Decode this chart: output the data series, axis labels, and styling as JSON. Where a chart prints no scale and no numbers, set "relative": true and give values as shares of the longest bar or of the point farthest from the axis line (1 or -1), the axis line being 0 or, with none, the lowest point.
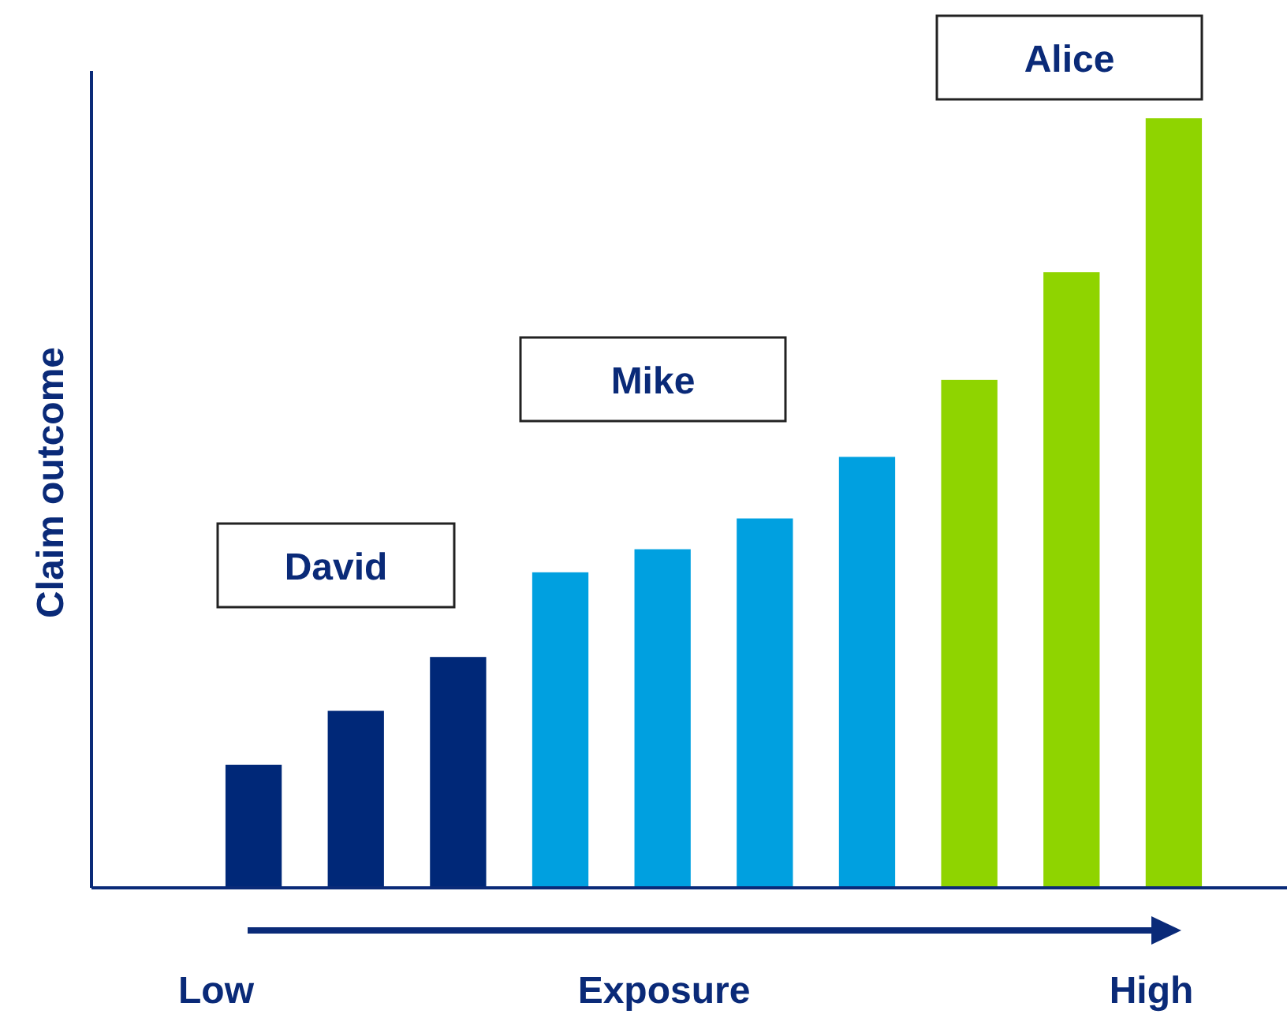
{
  "chart_data": {
    "type": "bar",
    "relative": true,
    "xlabel": "Exposure",
    "ylabel": "Claim outcome",
    "categories": [
      null,
      null,
      null,
      null,
      null,
      null,
      null,
      null,
      null,
      null
    ],
    "values": [
      0.16,
      0.23,
      0.3,
      0.41,
      0.44,
      0.48,
      0.56,
      0.66,
      0.8,
      1
    ],
    "colors": [
      "#002878",
      "#002878",
      "#002878",
      "#00a0e0",
      "#00a0e0",
      "#00a0e0",
      "#00a0e0",
      "#8fd400",
      "#8fd400",
      "#8fd400"
    ],
    "annotations": [
      "David",
      "Mike",
      "Alice",
      "Low",
      "High"
    ]
  }
}
